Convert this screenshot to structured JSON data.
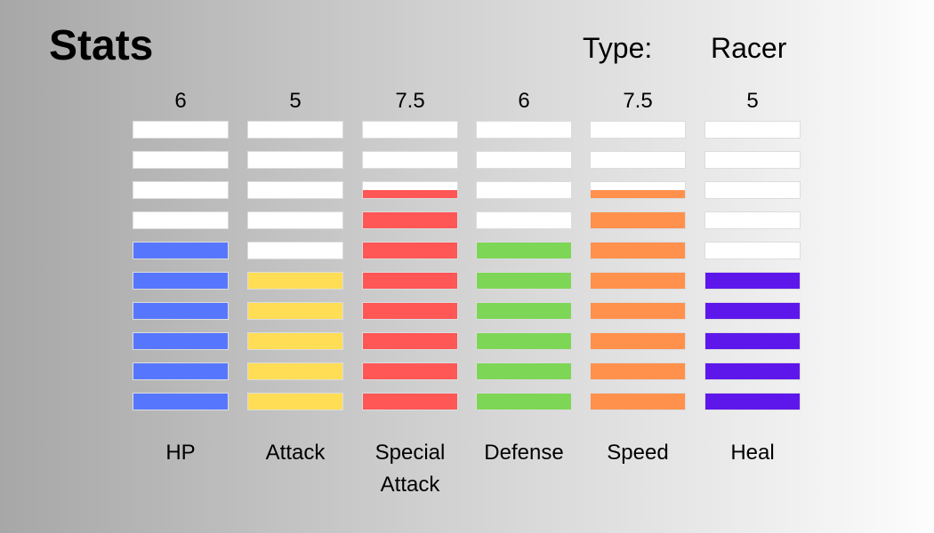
{
  "title": "Stats",
  "type_label": "Type:",
  "type_value": "Racer",
  "max_segments": 10,
  "stats": [
    {
      "name": "HP",
      "value": "6",
      "level": 6,
      "color": "#5677fd"
    },
    {
      "name": "Attack",
      "value": "5",
      "level": 5,
      "color": "#ffdd55"
    },
    {
      "name": "Special Attack",
      "value": "7.5",
      "level": 7.5,
      "color": "#ff5656"
    },
    {
      "name": "Defense",
      "value": "6",
      "level": 6,
      "color": "#7ed656"
    },
    {
      "name": "Speed",
      "value": "7.5",
      "level": 7.5,
      "color": "#ff914d"
    },
    {
      "name": "Heal",
      "value": "5",
      "level": 5,
      "color": "#5e17eb"
    }
  ]
}
